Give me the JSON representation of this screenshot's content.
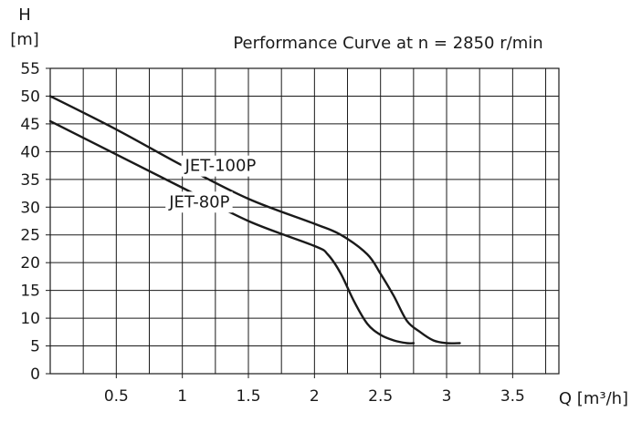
{
  "chart_data": {
    "type": "line",
    "title": "Performance Curve at n = 2850 r/min",
    "y_axis": {
      "title_line1": "H",
      "title_line2": "[m]",
      "ylim": [
        0,
        55
      ],
      "ticks": [
        "0",
        "5",
        "10",
        "15",
        "20",
        "25",
        "30",
        "35",
        "40",
        "45",
        "50",
        "55"
      ],
      "tick_values": [
        0,
        5,
        10,
        15,
        20,
        25,
        30,
        35,
        40,
        45,
        50,
        55
      ]
    },
    "x_axis": {
      "title": "Q [m³/h]",
      "xlim": [
        0,
        3.85
      ],
      "ticks": [
        "0.5",
        "1",
        "1.5",
        "2",
        "2.5",
        "3",
        "3.5"
      ],
      "tick_values": [
        0.5,
        1,
        1.5,
        2,
        2.5,
        3,
        3.5
      ]
    },
    "grid": true,
    "series": [
      {
        "name": "JET-100P",
        "x": [
          0,
          0.5,
          1.0,
          1.5,
          2.0,
          2.2,
          2.4,
          2.5,
          2.6,
          2.7,
          2.8,
          2.9,
          3.0,
          3.1
        ],
        "y": [
          50,
          44,
          37.5,
          31.5,
          27,
          25,
          21.5,
          18,
          14,
          9.5,
          7.5,
          6,
          5.5,
          5.5
        ]
      },
      {
        "name": "JET-80P",
        "x": [
          0,
          0.5,
          1.0,
          1.5,
          2.0,
          2.1,
          2.2,
          2.3,
          2.4,
          2.5,
          2.6,
          2.7,
          2.75
        ],
        "y": [
          45.5,
          39.5,
          33.5,
          27.5,
          23,
          21.5,
          18,
          13,
          9,
          7,
          6,
          5.5,
          5.5
        ]
      }
    ]
  }
}
